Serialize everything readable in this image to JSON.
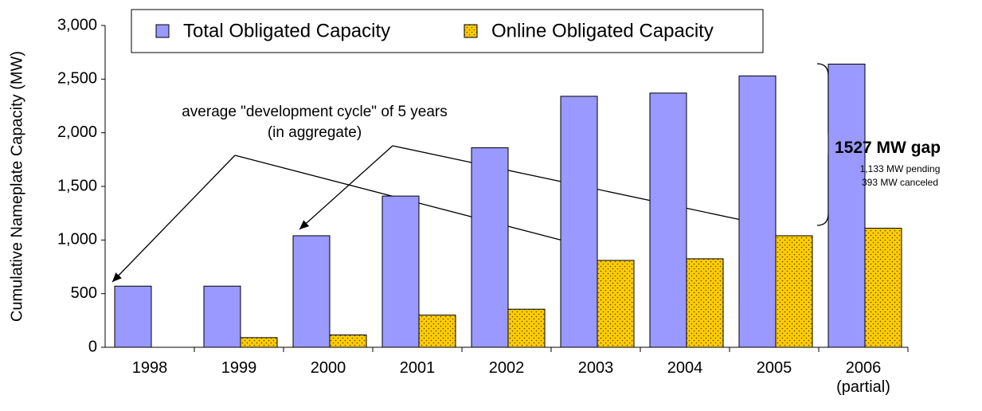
{
  "chart_data": {
    "type": "bar",
    "y_label": "Cumulative Nameplate Capacity (MW)",
    "categories": [
      "1998",
      "1999",
      "2000",
      "2001",
      "2002",
      "2003",
      "2004",
      "2005",
      "2006\n(partial)"
    ],
    "series": [
      {
        "name": "Total Obligated Capacity",
        "color": "#9999ff",
        "values": [
          570,
          570,
          1040,
          1410,
          1860,
          2340,
          2370,
          2530,
          2640
        ]
      },
      {
        "name": "Online Obligated Capacity",
        "color": "#ffcc00",
        "values": [
          0,
          90,
          115,
          300,
          355,
          810,
          825,
          1040,
          1110
        ]
      }
    ],
    "ylim": [
      0,
      3000
    ],
    "yticks": [
      0,
      500,
      {
        "value": 1000,
        "label": "1,000"
      },
      {
        "value": 1500,
        "label": "1,500"
      },
      {
        "value": 2000,
        "label": "2,000"
      },
      {
        "value": 2500,
        "label": "2,500"
      },
      {
        "value": 3000,
        "label": "3,000"
      }
    ],
    "annotations": {
      "cycle": "average \"development cycle\" of 5 years\n(in aggregate)",
      "gap": "1527 MW gap",
      "pending": "1,133 MW pending",
      "canceled": "393 MW canceled"
    }
  }
}
